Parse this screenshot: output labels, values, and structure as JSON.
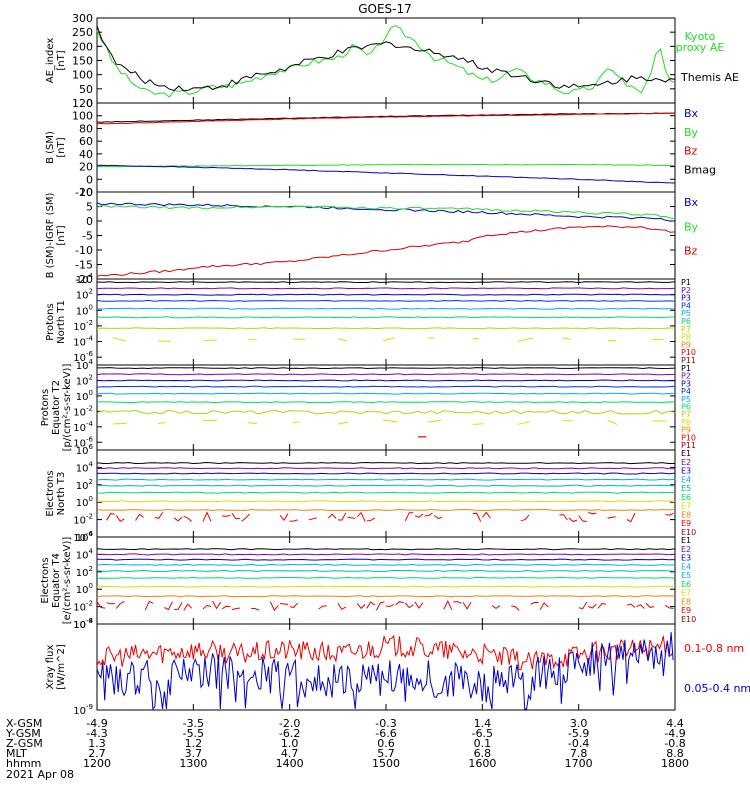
{
  "title": "GOES-17",
  "date_label": "2021 Apr 08",
  "colors": {
    "black": "#000000",
    "green": "#22dd22",
    "blue": "#0000cc",
    "red": "#dd0000",
    "navy": "#000080",
    "purple": "#8800aa",
    "bright_blue": "#0033ff",
    "sky": "#00aaff",
    "teal": "#00bbaa",
    "lime": "#00dd66",
    "yellow_green": "#aadd00",
    "yellow": "#dddd00",
    "orange": "#ee8800",
    "dark_red": "#990000",
    "red2": "#ee0000"
  },
  "x_axis": {
    "tick_values": [
      1200,
      1300,
      1400,
      1500,
      1600,
      1700,
      1800
    ],
    "rows": [
      {
        "label": "X-GSM",
        "values": [
          "-4.9",
          "-3.5",
          "-2.0",
          "-0.3",
          "1.4",
          "3.0",
          "4.4"
        ]
      },
      {
        "label": "Y-GSM",
        "values": [
          "-4.3",
          "-5.5",
          "-6.2",
          "-6.6",
          "-6.5",
          "-5.9",
          "-4.9"
        ]
      },
      {
        "label": "Z-GSM",
        "values": [
          "1.3",
          "1.2",
          "1.0",
          "0.6",
          "0.1",
          "-0.4",
          "-0.8"
        ]
      },
      {
        "label": "MLT",
        "values": [
          "2.7",
          "3.7",
          "4.7",
          "5.7",
          "6.8",
          "7.8",
          "8.8"
        ]
      },
      {
        "label": "hhmm",
        "values": [
          "1200",
          "1300",
          "1400",
          "1500",
          "1600",
          "1700",
          "1800"
        ]
      }
    ]
  },
  "chart_data": [
    {
      "type": "line",
      "name": "ae-panel",
      "ylabel": "AE_index [nT]",
      "ylim": [
        0,
        300
      ],
      "yticks": [
        "0",
        "50",
        "100",
        "150",
        "200",
        "250",
        "300"
      ],
      "legend": [
        {
          "label": "Kyoto proxy AE",
          "color": "#22dd22"
        },
        {
          "label": "Themis AE",
          "color": "#000000"
        }
      ],
      "series": [
        {
          "name": "Kyoto proxy AE",
          "color": "#22dd22",
          "kind": "line",
          "x": [
            1200,
            1210,
            1220,
            1230,
            1240,
            1250,
            1300,
            1310,
            1320,
            1330,
            1340,
            1350,
            1400,
            1410,
            1420,
            1430,
            1440,
            1450,
            1500,
            1505,
            1510,
            1515,
            1520,
            1530,
            1540,
            1550,
            1600,
            1610,
            1620,
            1630,
            1640,
            1650,
            1700,
            1710,
            1720,
            1730,
            1740,
            1745,
            1750,
            1755,
            1800
          ],
          "y": [
            260,
            140,
            80,
            40,
            30,
            35,
            40,
            55,
            60,
            70,
            90,
            110,
            120,
            140,
            150,
            160,
            200,
            160,
            240,
            265,
            250,
            230,
            210,
            160,
            140,
            110,
            80,
            85,
            120,
            90,
            70,
            40,
            40,
            60,
            130,
            60,
            40,
            100,
            210,
            90,
            60
          ]
        },
        {
          "name": "Themis AE",
          "color": "#000000",
          "kind": "line",
          "x": [
            1200,
            1210,
            1220,
            1230,
            1240,
            1250,
            1300,
            1310,
            1320,
            1330,
            1340,
            1350,
            1400,
            1410,
            1420,
            1430,
            1440,
            1450,
            1500,
            1510,
            1520,
            1530,
            1540,
            1550,
            1600,
            1610,
            1620,
            1630,
            1640,
            1650,
            1700,
            1710,
            1720,
            1730,
            1740,
            1750,
            1800
          ],
          "y": [
            270,
            150,
            110,
            80,
            60,
            55,
            50,
            55,
            65,
            80,
            100,
            110,
            125,
            145,
            160,
            175,
            190,
            200,
            210,
            205,
            185,
            180,
            170,
            150,
            125,
            115,
            100,
            85,
            75,
            60,
            55,
            60,
            75,
            85,
            90,
            90,
            80
          ]
        }
      ]
    },
    {
      "type": "line",
      "name": "b-sm-panel",
      "ylabel": "B (SM) [nT]",
      "ylim": [
        -20,
        120
      ],
      "yticks": [
        "-20",
        "0",
        "20",
        "40",
        "60",
        "80",
        "100",
        "120"
      ],
      "legend": [
        {
          "label": "Bx",
          "color": "#0000cc"
        },
        {
          "label": "By",
          "color": "#22dd22"
        },
        {
          "label": "Bz",
          "color": "#dd0000"
        },
        {
          "label": "Bmag",
          "color": "#000000"
        }
      ],
      "series": [
        {
          "name": "Bmag",
          "color": "#000000",
          "kind": "line",
          "x": [
            1200,
            1300,
            1400,
            1500,
            1600,
            1700,
            1800
          ],
          "y": [
            90,
            93,
            96,
            99,
            101,
            103,
            104
          ]
        },
        {
          "name": "Bz",
          "color": "#dd0000",
          "kind": "line",
          "x": [
            1200,
            1300,
            1400,
            1500,
            1600,
            1700,
            1800
          ],
          "y": [
            87,
            91,
            95,
            98,
            100,
            102,
            104
          ]
        },
        {
          "name": "By",
          "color": "#22dd22",
          "kind": "line",
          "x": [
            1200,
            1300,
            1400,
            1500,
            1600,
            1700,
            1800
          ],
          "y": [
            20,
            21,
            22,
            23,
            23,
            23,
            22
          ]
        },
        {
          "name": "Bx",
          "color": "#0000cc",
          "kind": "line",
          "x": [
            1200,
            1300,
            1400,
            1500,
            1600,
            1700,
            1800
          ],
          "y": [
            22,
            19,
            15,
            10,
            5,
            0,
            -6
          ]
        }
      ]
    },
    {
      "type": "line",
      "name": "b-igrf-panel",
      "ylabel": "B (SM)-IGRF (SM) [nT]",
      "ylim": [
        -20,
        10
      ],
      "yticks": [
        "-20",
        "-15",
        "-10",
        "-5",
        "0",
        "5",
        "10"
      ],
      "legend": [
        {
          "label": "Bx",
          "color": "#0000cc"
        },
        {
          "label": "By",
          "color": "#22dd22"
        },
        {
          "label": "Bz",
          "color": "#dd0000"
        }
      ],
      "series": [
        {
          "name": "Bx",
          "color": "#0000cc",
          "kind": "line",
          "x": [
            1200,
            1300,
            1400,
            1500,
            1600,
            1700,
            1750,
            1800
          ],
          "y": [
            6,
            5.5,
            5,
            4,
            3,
            1.5,
            1,
            0
          ]
        },
        {
          "name": "By",
          "color": "#22dd22",
          "kind": "line",
          "x": [
            1200,
            1300,
            1400,
            1500,
            1600,
            1700,
            1750,
            1800
          ],
          "y": [
            5,
            4.5,
            5,
            4.5,
            4,
            3,
            2,
            1
          ]
        },
        {
          "name": "Bz",
          "color": "#dd0000",
          "kind": "line",
          "x": [
            1200,
            1250,
            1300,
            1400,
            1500,
            1550,
            1600,
            1700,
            1740,
            1760,
            1780,
            1800
          ],
          "y": [
            -19,
            -17,
            -16,
            -14,
            -10,
            -7,
            -5,
            -2,
            -2,
            -4,
            0,
            -2
          ]
        }
      ]
    },
    {
      "type": "line",
      "name": "protons-t1-panel",
      "log": true,
      "ylabel": "Protons North T1",
      "ylim_exp": [
        -7,
        4
      ],
      "yticks": [
        {
          "base": "10",
          "exp": "4",
          "e": 4
        },
        {
          "base": "10",
          "exp": "2",
          "e": 2
        },
        {
          "base": "10",
          "exp": "0",
          "e": 0
        },
        {
          "base": "10",
          "exp": "-2",
          "e": -2
        },
        {
          "base": "10",
          "exp": "-4",
          "e": -4
        },
        {
          "base": "10",
          "exp": "-6",
          "e": -6
        }
      ],
      "channels": [
        {
          "label": "P1",
          "color": "#000000",
          "level": 3.6,
          "kind": "flat"
        },
        {
          "label": "P2",
          "color": "#8800aa",
          "level": 2.8,
          "kind": "flat"
        },
        {
          "label": "P3",
          "color": "#0000cc",
          "level": 2.0,
          "kind": "flat"
        },
        {
          "label": "P4",
          "color": "#0033ff",
          "level": 1.2,
          "kind": "flat"
        },
        {
          "label": "P5",
          "color": "#00aaff",
          "level": 0.2,
          "kind": "flat"
        },
        {
          "label": "P6",
          "color": "#00dd66",
          "level": -0.9,
          "kind": "flat"
        },
        {
          "label": "P7",
          "color": "#aadd00",
          "level": -2.3,
          "kind": "flat"
        },
        {
          "label": "P8",
          "color": "#dddd00",
          "level": -3.7,
          "kind": "sparse"
        },
        {
          "label": "P9",
          "color": "#ee8800",
          "level": -4.9,
          "kind": "none"
        },
        {
          "label": "P10",
          "color": "#ee0000",
          "level": -5.6,
          "kind": "none"
        },
        {
          "label": "P11",
          "color": "#990000",
          "level": -6.2,
          "kind": "none"
        }
      ]
    },
    {
      "type": "line",
      "name": "protons-t2-panel",
      "log": true,
      "ylabel": "Protons Equator T2 [p/(cm²-s-sr-keV)]",
      "ylim_exp": [
        -7,
        4
      ],
      "yticks": [
        {
          "base": "10",
          "exp": "4",
          "e": 4
        },
        {
          "base": "10",
          "exp": "2",
          "e": 2
        },
        {
          "base": "10",
          "exp": "0",
          "e": 0
        },
        {
          "base": "10",
          "exp": "-2",
          "e": -2
        },
        {
          "base": "10",
          "exp": "-4",
          "e": -4
        },
        {
          "base": "10",
          "exp": "-6",
          "e": -6
        }
      ],
      "channels": [
        {
          "label": "P1",
          "color": "#000000",
          "level": 3.6,
          "kind": "flat"
        },
        {
          "label": "P2",
          "color": "#8800aa",
          "level": 2.8,
          "kind": "flat"
        },
        {
          "label": "P3",
          "color": "#0000cc",
          "level": 2.0,
          "kind": "flat"
        },
        {
          "label": "P4",
          "color": "#0033ff",
          "level": 1.2,
          "kind": "flat"
        },
        {
          "label": "P5",
          "color": "#00aaff",
          "level": 0.3,
          "kind": "flat"
        },
        {
          "label": "P6",
          "color": "#00dd66",
          "level": -0.8,
          "kind": "flat"
        },
        {
          "label": "P7",
          "color": "#aadd00",
          "level": -2.1,
          "kind": "wavy"
        },
        {
          "label": "P8",
          "color": "#dddd00",
          "level": -3.4,
          "kind": "sparse"
        },
        {
          "label": "P9",
          "color": "#ee8800",
          "level": -4.6,
          "kind": "none"
        },
        {
          "label": "P10",
          "color": "#ee0000",
          "level": -5.3,
          "kind": "dot"
        },
        {
          "label": "P11",
          "color": "#990000",
          "level": -6.0,
          "kind": "none"
        }
      ]
    },
    {
      "type": "line",
      "name": "electrons-t3-panel",
      "log": true,
      "ylabel": "Electrons North T3",
      "ylim_exp": [
        -4,
        6
      ],
      "yticks": [
        {
          "base": "10",
          "exp": "6",
          "e": 6
        },
        {
          "base": "10",
          "exp": "4",
          "e": 4
        },
        {
          "base": "10",
          "exp": "2",
          "e": 2
        },
        {
          "base": "10",
          "exp": "0",
          "e": 0
        },
        {
          "base": "10",
          "exp": "-2",
          "e": -2
        },
        {
          "base": "10",
          "exp": "-4",
          "e": -4
        }
      ],
      "channels": [
        {
          "label": "E1",
          "color": "#000000",
          "level": 4.5,
          "kind": "flat"
        },
        {
          "label": "E2",
          "color": "#8800aa",
          "level": 3.9,
          "kind": "flat"
        },
        {
          "label": "E3",
          "color": "#0000cc",
          "level": 3.3,
          "kind": "flat"
        },
        {
          "label": "E4",
          "color": "#00aaff",
          "level": 2.6,
          "kind": "flat"
        },
        {
          "label": "E5",
          "color": "#00bbaa",
          "level": 1.9,
          "kind": "flat"
        },
        {
          "label": "E6",
          "color": "#00dd66",
          "level": 1.1,
          "kind": "flat"
        },
        {
          "label": "E7",
          "color": "#dddd00",
          "level": 0.1,
          "kind": "flat"
        },
        {
          "label": "E8",
          "color": "#ee8800",
          "level": -0.9,
          "kind": "flat"
        },
        {
          "label": "E9",
          "color": "#ee0000",
          "level": -1.7,
          "kind": "noisy"
        },
        {
          "label": "E10",
          "color": "#990000",
          "level": -3.0,
          "kind": "none"
        }
      ]
    },
    {
      "type": "line",
      "name": "electrons-t4-panel",
      "log": true,
      "ylabel": "Electrons Equator T4 [e/(cm²-s-sr-keV)]",
      "ylim_exp": [
        -4,
        6
      ],
      "yticks": [
        {
          "base": "10",
          "exp": "6",
          "e": 6
        },
        {
          "base": "10",
          "exp": "4",
          "e": 4
        },
        {
          "base": "10",
          "exp": "2",
          "e": 2
        },
        {
          "base": "10",
          "exp": "0",
          "e": 0
        },
        {
          "base": "10",
          "exp": "-2",
          "e": -2
        },
        {
          "base": "10",
          "exp": "-4",
          "e": -4
        }
      ],
      "channels": [
        {
          "label": "E1",
          "color": "#000000",
          "level": 4.6,
          "kind": "flat"
        },
        {
          "label": "E2",
          "color": "#8800aa",
          "level": 4.0,
          "kind": "flat"
        },
        {
          "label": "E3",
          "color": "#0000cc",
          "level": 3.4,
          "kind": "flat"
        },
        {
          "label": "E4",
          "color": "#00aaff",
          "level": 2.8,
          "kind": "flat"
        },
        {
          "label": "E5",
          "color": "#00bbaa",
          "level": 2.1,
          "kind": "flat"
        },
        {
          "label": "E6",
          "color": "#00dd66",
          "level": 1.3,
          "kind": "flat"
        },
        {
          "label": "E7",
          "color": "#dddd00",
          "level": 0.3,
          "kind": "flat"
        },
        {
          "label": "E8",
          "color": "#ee8800",
          "level": -0.8,
          "kind": "flat"
        },
        {
          "label": "E9",
          "color": "#ee0000",
          "level": -1.9,
          "kind": "noisy"
        },
        {
          "label": "E10",
          "color": "#990000",
          "level": -3.0,
          "kind": "none"
        }
      ]
    },
    {
      "type": "line",
      "name": "xray-panel",
      "log": true,
      "ylabel": "Xray flux [W/m^2]",
      "ylim_exp": [
        -9,
        -8
      ],
      "yticks": [
        {
          "base": "10",
          "exp": "-8",
          "e": -8
        },
        {
          "base": "10",
          "exp": "-9",
          "e": -9
        }
      ],
      "legend": [
        {
          "label": "0.1-0.8 nm",
          "color": "#ee0000"
        },
        {
          "label": "0.05-0.4 nm",
          "color": "#0000cc"
        }
      ],
      "series": [
        {
          "name": "0.1-0.8 nm",
          "color": "#ee0000",
          "kind": "noisy",
          "x": [
            1200,
            1230,
            1300,
            1330,
            1400,
            1430,
            1500,
            1530,
            1600,
            1630,
            1700,
            1730,
            1800
          ],
          "y": [
            -8.4,
            -8.35,
            -8.3,
            -8.35,
            -8.3,
            -8.35,
            -8.25,
            -8.3,
            -8.35,
            -8.45,
            -8.35,
            -8.3,
            -8.25
          ]
        },
        {
          "name": "0.05-0.4 nm",
          "color": "#0000cc",
          "kind": "noisy_deep",
          "x": [
            1200,
            1230,
            1300,
            1330,
            1400,
            1430,
            1500,
            1530,
            1600,
            1630,
            1700,
            1730,
            1800
          ],
          "y": [
            -8.6,
            -8.65,
            -8.5,
            -8.6,
            -8.6,
            -8.65,
            -8.55,
            -8.65,
            -8.7,
            -8.65,
            -8.4,
            -8.35,
            -8.3
          ]
        }
      ]
    }
  ]
}
